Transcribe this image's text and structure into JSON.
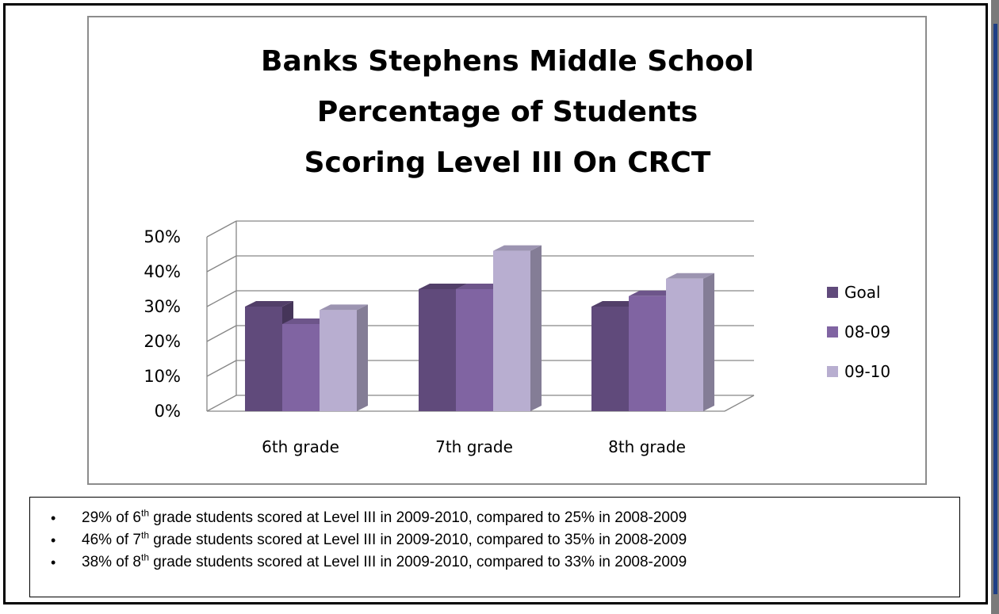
{
  "chart_data": {
    "type": "bar",
    "title_lines": [
      "Banks Stephens Middle School",
      "Percentage of Students",
      "Scoring Level III On CRCT"
    ],
    "categories": [
      "6th grade",
      "7th grade",
      "8th grade"
    ],
    "series": [
      {
        "name": "Goal",
        "values": [
          30,
          35,
          30
        ],
        "color": "#604a7b"
      },
      {
        "name": "08-09",
        "values": [
          25,
          35,
          33
        ],
        "color": "#8064a2"
      },
      {
        "name": "09-10",
        "values": [
          29,
          46,
          38
        ],
        "color": "#b8aed0"
      }
    ],
    "y_ticks": [
      "0%",
      "10%",
      "20%",
      "30%",
      "40%",
      "50%"
    ],
    "ylim": [
      0,
      50
    ],
    "legend_position": "right",
    "grid": true,
    "style": "3d-clustered-column"
  },
  "notes": [
    {
      "lead": "29% of 6",
      "sup": "th",
      "rest": " grade students scored at Level III in 2009-2010, compared to 25% in 2008-2009"
    },
    {
      "lead": "46% of 7",
      "sup": "th",
      "rest": " grade students scored at Level III in 2009-2010, compared to 35% in 2008-2009"
    },
    {
      "lead": "38% of 8",
      "sup": "th",
      "rest": " grade students scored at Level III in 2009-2010, compared to 33% in 2008-2009"
    }
  ],
  "bullet_char": "•"
}
